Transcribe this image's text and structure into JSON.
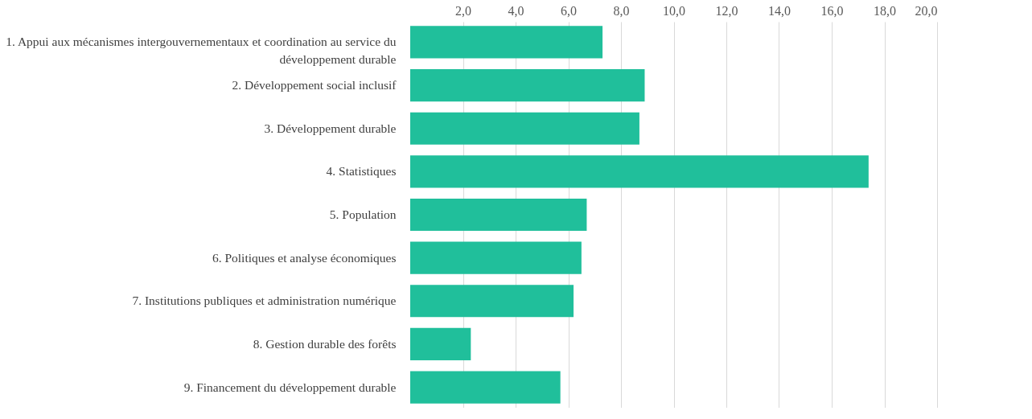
{
  "chart_data": {
    "type": "bar",
    "orientation": "horizontal",
    "categories": [
      "1. Appui aux mécanismes intergouvernementaux et coordination au service du développement durable",
      "2. Développement social inclusif",
      "3. Développement durable",
      "4. Statistiques",
      "5. Population",
      "6. Politiques et analyse économiques",
      "7. Institutions publiques et administration numérique",
      "8. Gestion durable des forêts",
      "9. Financement du développement durable"
    ],
    "values": [
      7.3,
      8.9,
      8.7,
      17.4,
      6.7,
      6.5,
      6.2,
      2.3,
      5.7
    ],
    "color": "#20bf9b",
    "xlim": [
      0,
      20
    ],
    "xticks": [
      {
        "value": 2,
        "label": "2,0"
      },
      {
        "value": 4,
        "label": "4,0"
      },
      {
        "value": 6,
        "label": "6,0"
      },
      {
        "value": 8,
        "label": "8,0"
      },
      {
        "value": 10,
        "label": "10,0"
      },
      {
        "value": 12,
        "label": "12,0"
      },
      {
        "value": 14,
        "label": "14,0"
      },
      {
        "value": 16,
        "label": "16,0"
      },
      {
        "value": 18,
        "label": "18,0"
      },
      {
        "value": 20,
        "label": "20,0"
      }
    ],
    "grid": "x"
  }
}
